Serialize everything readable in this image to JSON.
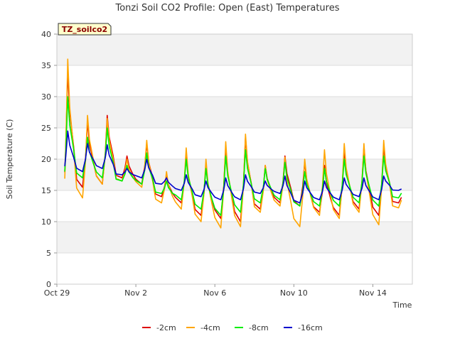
{
  "chart_data": {
    "type": "line",
    "title": "Tonzi Soil CO2 Profile: Open (East) Temperatures",
    "xlabel": "Time",
    "ylabel": "Soil Temperature (C)",
    "badge": "TZ_soilco2",
    "xlim": [
      0,
      18
    ],
    "ylim": [
      0,
      40
    ],
    "x_ticks": [
      {
        "x": 0,
        "label": "Oct 29"
      },
      {
        "x": 4,
        "label": "Nov 2"
      },
      {
        "x": 8,
        "label": "Nov 6"
      },
      {
        "x": 12,
        "label": "Nov 10"
      },
      {
        "x": 16,
        "label": "Nov 14"
      }
    ],
    "y_ticks": [
      0,
      5,
      10,
      15,
      20,
      25,
      30,
      35,
      40
    ],
    "grid": true,
    "legend_position": "bottom",
    "day_x": [
      0.3,
      1.3,
      2.3,
      3.3,
      4.3,
      5.3,
      6.3,
      7.3,
      8.3,
      9.3,
      10.3,
      11.3,
      12.3,
      13.3,
      14.3,
      15.3,
      16.3,
      17.3
    ],
    "series": [
      {
        "name": "-2cm",
        "color": "#dd0000",
        "min": [
          12.5,
          15.5,
          16.0,
          17.0,
          16.0,
          14.0,
          13.0,
          11.0,
          10.5,
          10.0,
          12.0,
          13.0,
          12.5,
          11.5,
          11.0,
          12.0,
          11.0,
          13.0
        ],
        "max": [
          34.0,
          26.0,
          27.0,
          20.5,
          22.5,
          17.5,
          20.5,
          19.0,
          22.0,
          23.5,
          19.0,
          20.5,
          19.5,
          19.0,
          21.5,
          22.0,
          22.0,
          15.0
        ]
      },
      {
        "name": "-4cm",
        "color": "#ffa500",
        "min": [
          10.5,
          13.8,
          16.0,
          16.5,
          15.5,
          13.0,
          12.0,
          10.0,
          9.0,
          9.2,
          11.5,
          12.5,
          9.2,
          11.0,
          10.5,
          11.5,
          9.5,
          12.2
        ],
        "max": [
          36.0,
          27.0,
          26.5,
          20.0,
          23.0,
          18.0,
          21.8,
          20.0,
          22.8,
          24.0,
          19.0,
          20.3,
          20.0,
          21.5,
          22.5,
          22.5,
          23.0,
          15.0
        ]
      },
      {
        "name": "-8cm",
        "color": "#00ee00",
        "min": [
          14.0,
          17.0,
          17.0,
          16.5,
          16.0,
          14.5,
          13.5,
          12.0,
          11.0,
          11.5,
          13.0,
          13.5,
          12.5,
          12.5,
          12.5,
          13.0,
          12.5,
          13.8
        ],
        "max": [
          30.0,
          23.5,
          25.0,
          19.0,
          21.0,
          16.5,
          20.0,
          18.5,
          20.5,
          21.5,
          18.5,
          19.5,
          18.0,
          18.5,
          20.0,
          20.5,
          20.5,
          15.5
        ]
      },
      {
        "name": "-16cm",
        "color": "#0000cc",
        "min": [
          17.0,
          18.0,
          18.5,
          17.5,
          17.0,
          16.0,
          15.0,
          14.0,
          13.5,
          13.5,
          14.5,
          14.5,
          13.0,
          13.5,
          13.5,
          14.0,
          13.5,
          15.0
        ],
        "max": [
          24.5,
          22.5,
          22.3,
          18.5,
          20.0,
          17.0,
          17.5,
          16.5,
          17.0,
          17.5,
          16.5,
          17.3,
          16.5,
          16.5,
          17.0,
          17.0,
          17.3,
          15.5
        ]
      }
    ]
  }
}
